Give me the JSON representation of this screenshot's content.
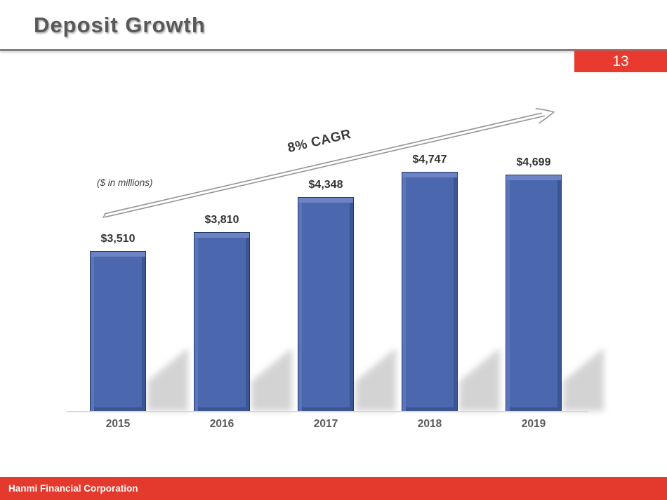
{
  "page": {
    "title": "Deposit Growth",
    "page_number": "13",
    "footer": "Hanmi Financial Corporation"
  },
  "chart_data": {
    "type": "bar",
    "title": "Deposit Growth",
    "units_note": "($ in millions)",
    "annotation": "8% CAGR",
    "categories": [
      "2015",
      "2016",
      "2017",
      "2018",
      "2019"
    ],
    "values": [
      3510,
      3810,
      4348,
      4747,
      4699
    ],
    "value_labels": [
      "$3,510",
      "$3,810",
      "$4,348",
      "$4,747",
      "$4,699"
    ],
    "ylim": [
      1000,
      5000
    ],
    "grid": false,
    "legend": "none",
    "bar_color": "#4b68af",
    "bar_border_color": "#203a66",
    "shadow_color": "#c9c9c9",
    "arrow_color": "#959595"
  },
  "colors": {
    "accent_red": "#e93a2f",
    "footer_red": "#e43a2e",
    "title_gray": "#595959",
    "rule_gray": "#7f7f7f"
  }
}
